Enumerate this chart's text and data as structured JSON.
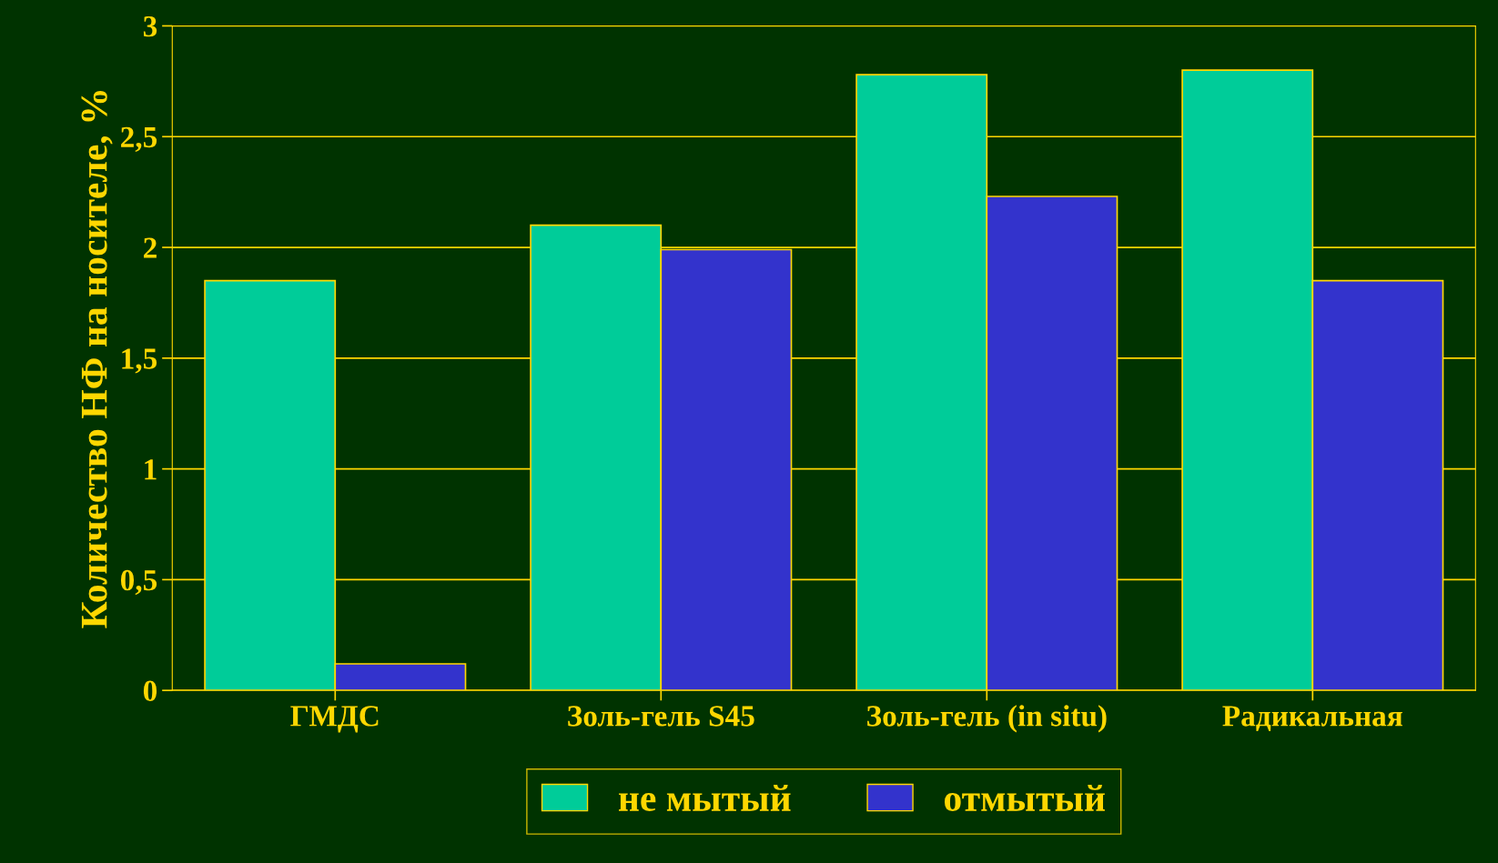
{
  "chart_data": {
    "type": "bar",
    "ylabel": "Количество НФ на носителе, %",
    "categories": [
      "ГМДС",
      "Золь-гель S45",
      "Золь-гель (in situ)",
      "Радикальная"
    ],
    "series": [
      {
        "name": "не мытый",
        "color": "#00cc99",
        "values": [
          1.85,
          2.1,
          2.78,
          2.8
        ]
      },
      {
        "name": "отмытый",
        "color": "#3333cc",
        "values": [
          0.12,
          1.99,
          2.23,
          1.85
        ]
      }
    ],
    "ylim": [
      0,
      3
    ],
    "yticks": [
      0,
      {
        "value": 0.5,
        "label": "0,5"
      },
      1,
      {
        "value": 1.5,
        "label": "1,5"
      },
      2,
      {
        "value": 2.5,
        "label": "2,5"
      },
      3
    ],
    "grid": "y",
    "legend": "bottom"
  }
}
